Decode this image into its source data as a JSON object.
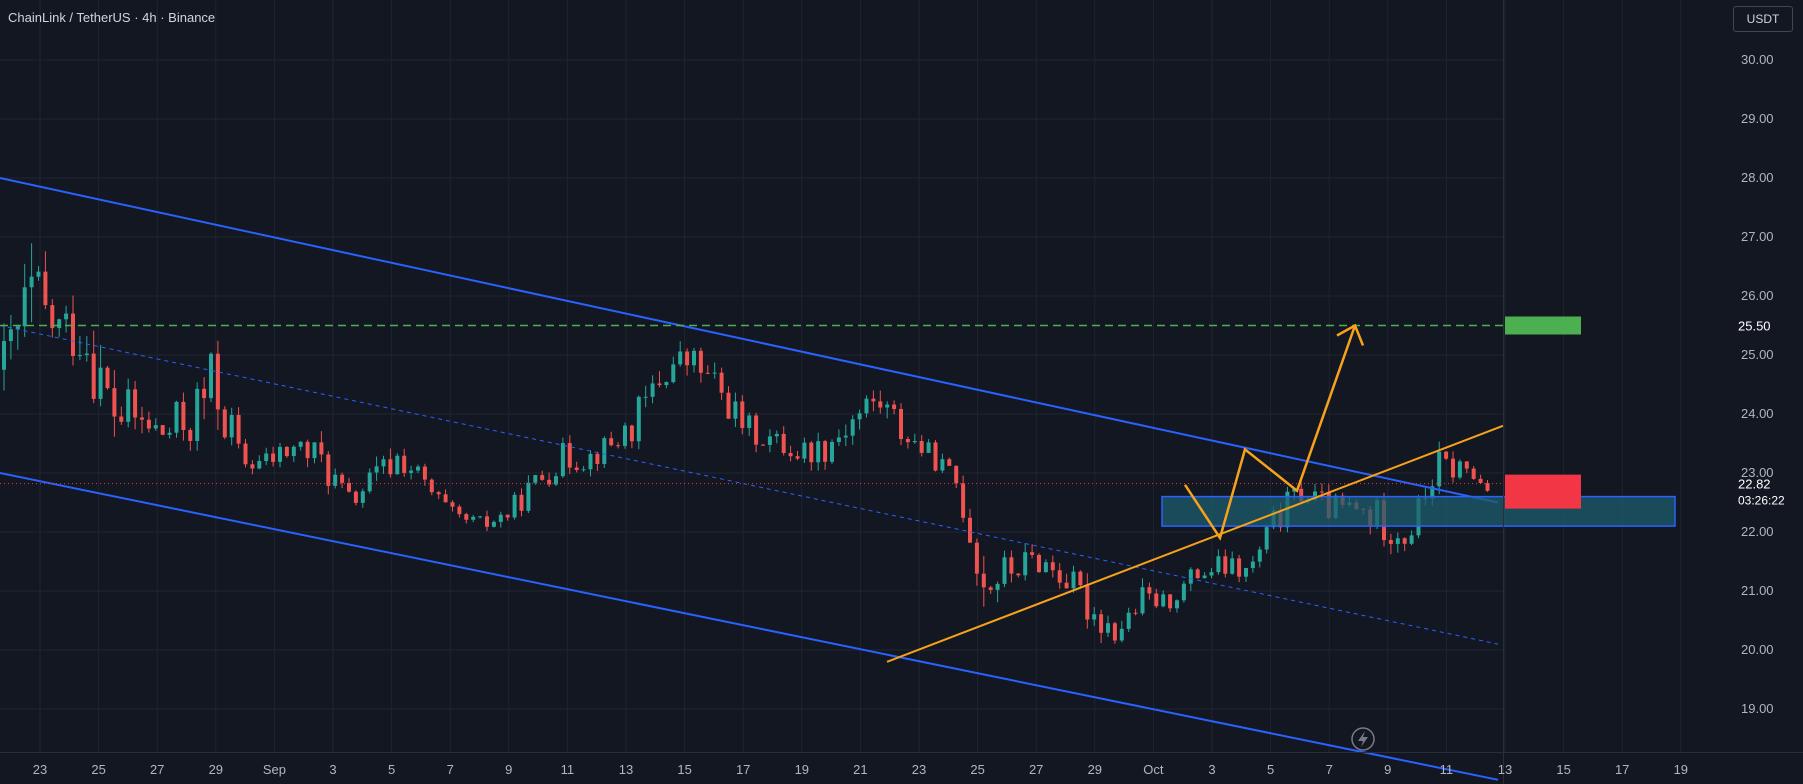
{
  "header": {
    "symbol_title": "ChainLink / TetherUS · 4h · Binance",
    "currency": "USDT"
  },
  "price_axis": {
    "ticks": [
      "30.00",
      "29.00",
      "28.00",
      "27.00",
      "26.00",
      "25.00",
      "24.00",
      "23.00",
      "22.00",
      "21.00",
      "20.00",
      "19.00"
    ]
  },
  "time_axis": {
    "ticks": [
      "23",
      "25",
      "27",
      "29",
      "Sep",
      "3",
      "5",
      "7",
      "9",
      "11",
      "13",
      "15",
      "17",
      "19",
      "21",
      "23",
      "25",
      "27",
      "29",
      "Oct",
      "3",
      "5",
      "7",
      "9",
      "11",
      "13",
      "15",
      "17",
      "19"
    ]
  },
  "labels": {
    "target_price": "25.50",
    "last_price": "22.82",
    "countdown": "03:26:22"
  },
  "colors": {
    "background": "#131722",
    "grid": "#1f2430",
    "up_candle": "#26a69a",
    "down_candle": "#ef5350",
    "channel": "#2962ff",
    "projection": "#f7a21b",
    "target_line": "#4caf50",
    "last_price": "#f23645",
    "zone_fill": "#1e5e6e",
    "zone_border": "#2962ff"
  },
  "icons": {
    "bottom_badge": "lightning-icon"
  },
  "chart_data": {
    "type": "candlestick",
    "title": "ChainLink / TetherUS · 4h · Binance",
    "ylim": [
      18.2,
      30.7
    ],
    "ohlc_path_approx": [
      [
        25.8,
        23.7
      ],
      [
        27.6,
        24.1
      ],
      [
        26.2,
        24.7
      ],
      [
        26.5,
        24.3
      ],
      [
        25.3,
        22.9
      ],
      [
        24.6,
        23.2
      ],
      [
        24.2,
        23.1
      ],
      [
        24.9,
        22.9
      ],
      [
        25.9,
        23.1
      ],
      [
        23.4,
        22.9
      ],
      [
        23.6,
        22.8
      ],
      [
        23.9,
        23.0
      ],
      [
        23.8,
        22.6
      ],
      [
        22.9,
        22.1
      ],
      [
        23.4,
        22.4
      ],
      [
        23.9,
        22.7
      ],
      [
        23.1,
        22.3
      ],
      [
        22.5,
        22.0
      ],
      [
        22.4,
        21.8
      ],
      [
        22.6,
        22.0
      ],
      [
        23.2,
        22.4
      ],
      [
        23.7,
        22.8
      ],
      [
        23.6,
        22.9
      ],
      [
        23.9,
        23.1
      ],
      [
        24.6,
        23.3
      ],
      [
        25.5,
        24.1
      ],
      [
        25.4,
        24.4
      ],
      [
        24.9,
        23.9
      ],
      [
        24.2,
        23.3
      ],
      [
        23.9,
        23.2
      ],
      [
        23.8,
        22.9
      ],
      [
        23.9,
        23.0
      ],
      [
        24.5,
        23.3
      ],
      [
        24.9,
        23.6
      ],
      [
        24.1,
        23.2
      ],
      [
        23.6,
        23.0
      ],
      [
        23.2,
        22.4
      ],
      [
        22.1,
        20.2
      ],
      [
        21.8,
        20.9
      ],
      [
        22.0,
        21.1
      ],
      [
        21.7,
        20.8
      ],
      [
        21.3,
        20.1
      ],
      [
        20.7,
        19.9
      ],
      [
        21.3,
        20.4
      ],
      [
        21.0,
        20.6
      ],
      [
        21.7,
        20.9
      ],
      [
        21.8,
        21.0
      ],
      [
        21.6,
        21.0
      ],
      [
        22.7,
        21.7
      ],
      [
        23.1,
        22.3
      ],
      [
        22.8,
        22.0
      ],
      [
        22.9,
        21.8
      ],
      [
        22.8,
        21.6
      ],
      [
        22.3,
        21.5
      ],
      [
        23.7,
        22.4
      ],
      [
        23.5,
        22.7
      ],
      [
        22.9,
        22.6
      ]
    ],
    "channel_upper": [
      [
        0,
        28.0
      ],
      [
        1498,
        22.5
      ]
    ],
    "channel_mid": [
      [
        0,
        25.5
      ],
      [
        1498,
        20.1
      ]
    ],
    "channel_lower": [
      [
        0,
        23.0
      ],
      [
        1498,
        17.8
      ]
    ],
    "ascending_support": [
      [
        887,
        19.8
      ],
      [
        1503,
        23.8
      ]
    ],
    "target_line_price": 25.5,
    "last_price": 22.82,
    "demand_zone": [
      22.1,
      22.6
    ],
    "projection_path": [
      [
        1185,
        22.8
      ],
      [
        1220,
        21.9
      ],
      [
        1245,
        23.4
      ],
      [
        1297,
        22.7
      ],
      [
        1355,
        25.5
      ]
    ]
  }
}
